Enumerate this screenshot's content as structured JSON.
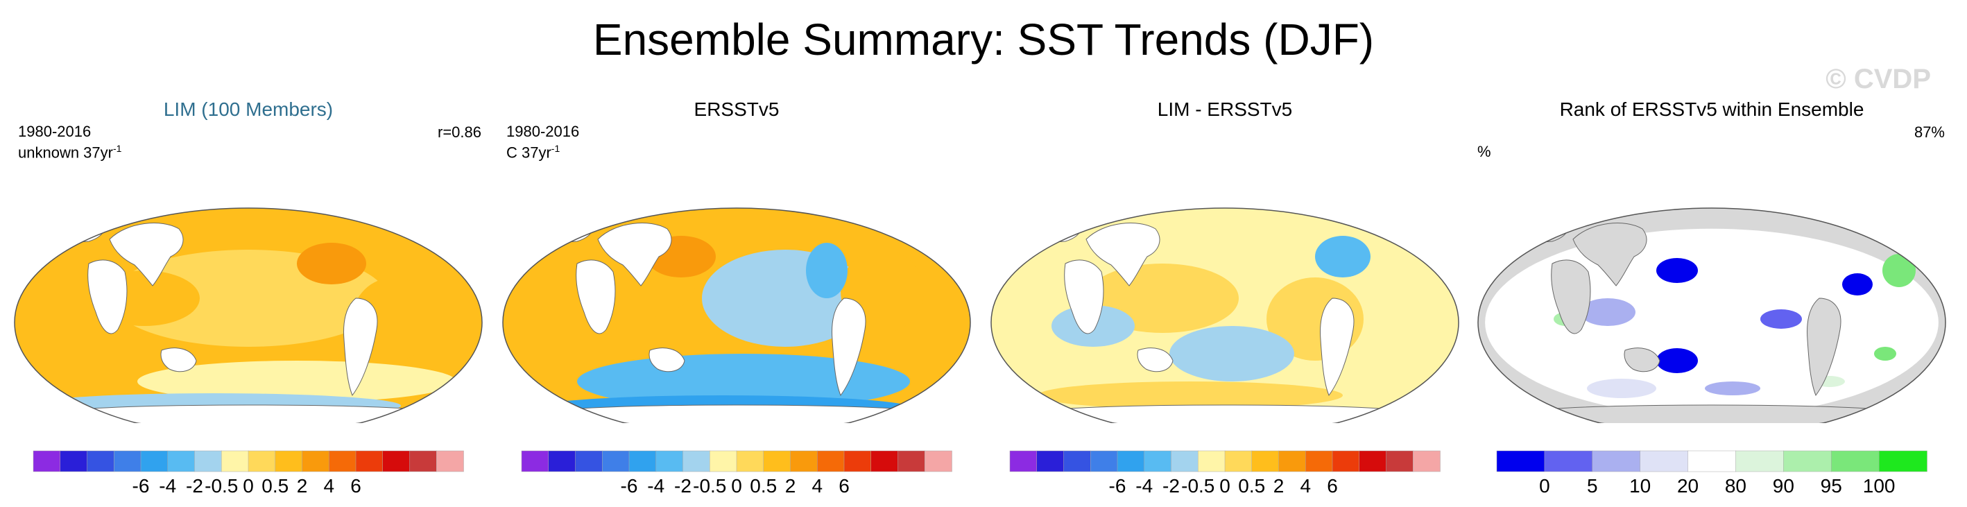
{
  "figure": {
    "title": "Ensemble Summary: SST Trends (DJF)",
    "watermark": "© CVDP"
  },
  "colors": {
    "trend_scale": [
      "#8c2be2",
      "#2a1fd8",
      "#3553e2",
      "#3f7fe8",
      "#30a2ee",
      "#58bbf2",
      "#a3d3ee",
      "#fff5a8",
      "#ffd95a",
      "#ffbe1c",
      "#f99a0c",
      "#f56a08",
      "#ec3c0a",
      "#d60b0b",
      "#c83a3a",
      "#f4a6a6"
    ],
    "rank_scale": [
      "#0000ee",
      "#6262f0",
      "#aab0f0",
      "#dfe2f6",
      "#ffffff",
      "#dcf4dc",
      "#acefac",
      "#7ae77a",
      "#1ee81e"
    ],
    "land_rank": "#d8d8d8"
  },
  "panels": [
    {
      "title": "LIM (100 Members)",
      "period_line1": "1980-2016",
      "period_line2": "unknown 37yr",
      "period_sup": "-1",
      "corner_right": "r=0.86",
      "corner_left": "",
      "title_color": "#2f6f8f",
      "colorbar_labels": [
        "-6",
        "-4",
        "-2",
        "-0.5",
        "0",
        "0.5",
        "2",
        "4",
        "6"
      ]
    },
    {
      "title": "ERSSTv5",
      "period_line1": "1980-2016",
      "period_line2": "C 37yr",
      "period_sup": "-1",
      "corner_right": "",
      "corner_left": "",
      "title_color": "#000000",
      "colorbar_labels": [
        "-6",
        "-4",
        "-2",
        "-0.5",
        "0",
        "0.5",
        "2",
        "4",
        "6"
      ]
    },
    {
      "title": "LIM - ERSSTv5",
      "period_line1": "",
      "period_line2": "",
      "period_sup": "",
      "corner_right": "",
      "corner_left": "",
      "title_color": "#000000",
      "colorbar_labels": [
        "-6",
        "-4",
        "-2",
        "-0.5",
        "0",
        "0.5",
        "2",
        "4",
        "6"
      ]
    },
    {
      "title": "Rank of ERSSTv5 within Ensemble",
      "period_line1": "",
      "period_line2": "",
      "period_sup": "",
      "corner_right": "87%",
      "corner_left": "%",
      "title_color": "#000000",
      "colorbar_labels": [
        "0",
        "5",
        "10",
        "20",
        "80",
        "90",
        "95",
        "100"
      ]
    }
  ],
  "chart_data": [
    {
      "type": "heatmap",
      "title": "LIM (100 Members)",
      "projection": "Robinson (global map)",
      "period": "1980-2016",
      "units": "unknown 37yr-1",
      "pattern_correlation": "r=0.86",
      "colorbar_ticks": [
        -6,
        -4,
        -2,
        -0.5,
        0,
        0.5,
        2,
        4,
        6
      ],
      "dominant_values": "mostly 0.5 to 2 over ocean; slight cooling (-0.5 to -2) in Southern Ocean"
    },
    {
      "type": "heatmap",
      "title": "ERSSTv5",
      "projection": "Robinson (global map)",
      "period": "1980-2016",
      "units": "C 37yr-1",
      "colorbar_ticks": [
        -6,
        -4,
        -2,
        -0.5,
        0,
        0.5,
        2,
        4,
        6
      ],
      "dominant_values": "warming 0.5 to 2 in western Pacific/Atlantic/Indian; cooling -0.5 to -2 in eastern Pacific and Southern Ocean"
    },
    {
      "type": "heatmap",
      "title": "LIM - ERSSTv5",
      "projection": "Robinson (global map)",
      "colorbar_ticks": [
        -6,
        -4,
        -2,
        -0.5,
        0,
        0.5,
        2,
        4,
        6
      ],
      "dominant_values": "mixed -0.5 to 0.5 differences"
    },
    {
      "type": "heatmap",
      "title": "Rank of ERSSTv5 within Ensemble",
      "projection": "Robinson (global map)",
      "summary_value": "87%",
      "units": "%",
      "colorbar_ticks": [
        0,
        5,
        10,
        20,
        80,
        90,
        95,
        100
      ],
      "dominant_values": "mostly 20-80 (white); low ranks 0-10 in North Pacific and South Pacific; high ranks 90-100 in scattered patches"
    }
  ]
}
